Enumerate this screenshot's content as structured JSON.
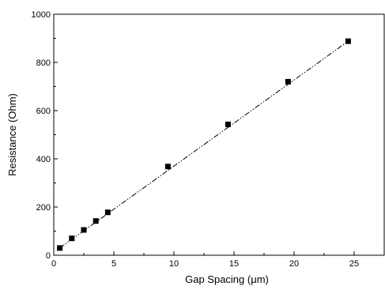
{
  "chart_data": {
    "type": "scatter",
    "xlabel": "Gap Spacing (μm)",
    "ylabel": "Resistance (Ohm)",
    "xlim": [
      0,
      27.5
    ],
    "ylim": [
      0,
      1000
    ],
    "x_ticks": [
      0,
      5,
      10,
      15,
      20,
      25
    ],
    "y_ticks": [
      0,
      200,
      400,
      600,
      800,
      1000
    ],
    "x_tick_labels": [
      "0",
      "5",
      "10",
      "15",
      "20",
      "25"
    ],
    "y_tick_labels": [
      "0",
      "200",
      "400",
      "600",
      "800",
      "1000"
    ],
    "grid": false,
    "series": [
      {
        "marker": "square",
        "color": "#000000",
        "x": [
          0.5,
          1.5,
          2.5,
          3.5,
          4.5,
          9.5,
          14.5,
          19.5,
          24.5
        ],
        "y": [
          30,
          70,
          105,
          142,
          178,
          368,
          543,
          720,
          888
        ]
      }
    ],
    "fit_line": {
      "style": "dash-dot-dot",
      "color": "#000000",
      "x": [
        0.5,
        24.5
      ],
      "y": [
        30,
        888
      ]
    }
  }
}
